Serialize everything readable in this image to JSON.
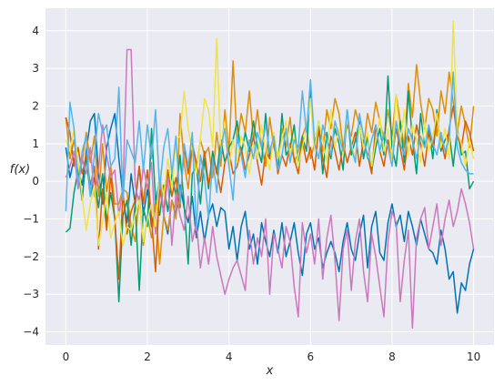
{
  "chart_data": {
    "type": "line",
    "xlabel": "x",
    "ylabel": "f(x)",
    "xlim": [
      -0.5,
      10.5
    ],
    "ylim": [
      -4.35,
      4.6
    ],
    "xticks": [
      0,
      2,
      4,
      6,
      8,
      10
    ],
    "yticks": [
      -4,
      -3,
      -2,
      -1,
      0,
      1,
      2,
      3,
      4
    ],
    "xtick_labels": [
      "0",
      "2",
      "4",
      "6",
      "8",
      "10"
    ],
    "ytick_labels": [
      "−4",
      "−3",
      "−2",
      "−1",
      "0",
      "1",
      "2",
      "3",
      "4"
    ],
    "grid": true,
    "legend": "none",
    "plot_background": "#EAEAF2",
    "grid_color": "#FFFFFF",
    "x_start": 0,
    "x_step": 0.1,
    "series": [
      {
        "color": "#0173B2",
        "values": [
          0.9,
          0.1,
          0.6,
          0.3,
          -0.1,
          0.8,
          1.6,
          1.8,
          0.2,
          -0.6,
          0.9,
          1.4,
          1.8,
          0.6,
          -0.4,
          -1.1,
          0.2,
          -0.6,
          0.4,
          -0.9,
          -0.2,
          -1.2,
          -0.6,
          0.1,
          -0.9,
          -1.4,
          -0.5,
          -0.9,
          -0.1,
          -0.7,
          -1.1,
          -0.4,
          -1.5,
          -0.8,
          -1.6,
          -0.9,
          -0.6,
          -1.2,
          -0.7,
          -0.8,
          -1.8,
          -1.2,
          -2.1,
          -1.2,
          -0.8,
          -1.8,
          -1.4,
          -2.2,
          -1.1,
          -1.6,
          -2.0,
          -1.3,
          -1.9,
          -1.1,
          -2.0,
          -1.6,
          -1.1,
          -1.9,
          -2.5,
          -1.4,
          -1.1,
          -1.8,
          -1.5,
          -2.3,
          -1.9,
          -1.6,
          -1.9,
          -2.4,
          -1.6,
          -1.1,
          -1.8,
          -2.1,
          -1.4,
          -0.9,
          -2.3,
          -1.2,
          -0.8,
          -1.9,
          -2.1,
          -1.1,
          -0.6,
          -1.2,
          -0.9,
          -1.6,
          -0.8,
          -1.2,
          -1.7,
          -1.0,
          -1.4,
          -1.8,
          -1.9,
          -2.2,
          -1.3,
          -1.8,
          -2.6,
          -2.4,
          -3.5,
          -2.7,
          -2.9,
          -2.2,
          -1.8
        ]
      },
      {
        "color": "#DE8F05",
        "values": [
          1.7,
          0.6,
          1.1,
          0.2,
          0.5,
          1.3,
          0.5,
          1.2,
          -0.4,
          1.0,
          -0.3,
          0.4,
          -0.6,
          -0.6,
          -0.2,
          -0.3,
          -1.2,
          -1.6,
          -0.4,
          -1.7,
          -0.9,
          -1.5,
          -0.6,
          -2.2,
          -0.9,
          -1.3,
          -0.5,
          -1.0,
          1.8,
          0.5,
          -0.2,
          0.9,
          0.3,
          1.1,
          0.7,
          0.9,
          0.1,
          1.3,
          0.4,
          1.9,
          0.8,
          3.2,
          1.0,
          1.8,
          1.3,
          2.4,
          1.1,
          1.9,
          0.9,
          0.4,
          1.7,
          0.9,
          0.6,
          1.4,
          0.9,
          1.7,
          0.5,
          0.8,
          1.2,
          1.5,
          0.6,
          1.0,
          1.4,
          0.8,
          1.9,
          1.4,
          2.2,
          1.8,
          0.9,
          1.5,
          1.2,
          1.9,
          1.5,
          0.9,
          1.8,
          1.3,
          2.1,
          1.6,
          1.1,
          1.9,
          1.2,
          2.3,
          1.6,
          0.9,
          2.6,
          1.7,
          3.1,
          2.1,
          1.4,
          2.2,
          1.9,
          1.2,
          2.4,
          1.8,
          2.9,
          2.1,
          1.3,
          2.0,
          1.5,
          0.9,
          2.0
        ]
      },
      {
        "color": "#029E73",
        "values": [
          -1.35,
          -1.25,
          -0.3,
          0.3,
          -0.5,
          0.7,
          -0.4,
          0.1,
          -0.7,
          0.2,
          -1.1,
          -0.3,
          -1.0,
          -3.2,
          -0.9,
          -0.5,
          -1.7,
          -0.6,
          -2.9,
          -0.7,
          -1.2,
          1.4,
          -0.5,
          -0.9,
          -0.1,
          -0.8,
          0.2,
          -0.4,
          0.7,
          -0.6,
          -2.2,
          0.2,
          0.4,
          -0.6,
          0.6,
          -0.2,
          0.8,
          0.2,
          1.1,
          0.5,
          0.9,
          1.1,
          1.6,
          0.7,
          1.3,
          0.8,
          1.6,
          0.9,
          0.5,
          1.8,
          0.6,
          1.2,
          0.3,
          1.8,
          0.7,
          0.9,
          1.5,
          0.4,
          1.2,
          0.8,
          2.5,
          0.9,
          1.6,
          0.2,
          1.3,
          0.6,
          1.4,
          1.0,
          0.3,
          1.9,
          0.7,
          1.1,
          1.6,
          0.6,
          1.2,
          0.3,
          0.9,
          1.4,
          0.7,
          2.8,
          0.9,
          0.4,
          1.6,
          0.5,
          2.4,
          1.1,
          0.2,
          1.8,
          0.9,
          1.4,
          0.6,
          1.9,
          0.8,
          1.1,
          1.3,
          0.4,
          1.4,
          0.7,
          0.8,
          -0.2,
          0.0
        ]
      },
      {
        "color": "#D55E00",
        "values": [
          1.7,
          1.3,
          0.4,
          0.9,
          0.2,
          0.7,
          -0.1,
          0.4,
          -1.8,
          -0.2,
          -1.3,
          0.2,
          -1.0,
          -2.6,
          -0.3,
          -1.4,
          -0.8,
          -0.5,
          0.4,
          -0.6,
          0.3,
          -1.0,
          -2.4,
          -0.2,
          -0.8,
          0.3,
          -0.4,
          0.1,
          -0.7,
          0.9,
          0.2,
          1.0,
          0.5,
          0.0,
          0.8,
          -0.1,
          0.6,
          0.3,
          -0.3,
          0.5,
          0.8,
          0.2,
          0.4,
          0.9,
          0.3,
          0.7,
          1.2,
          0.5,
          -0.1,
          0.8,
          0.6,
          1.1,
          0.2,
          0.7,
          0.4,
          1.0,
          0.6,
          0.2,
          1.1,
          0.5,
          0.9,
          0.3,
          1.4,
          0.6,
          0.1,
          1.2,
          0.8,
          0.3,
          1.0,
          0.5,
          0.9,
          1.3,
          0.4,
          1.1,
          0.7,
          0.2,
          1.5,
          0.8,
          0.4,
          1.1,
          0.6,
          1.4,
          0.9,
          0.3,
          1.2,
          0.7,
          1.5,
          1.0,
          0.4,
          1.3,
          0.9,
          1.6,
          1.1,
          0.6,
          1.4,
          2.0,
          1.2,
          0.9,
          1.6,
          1.3,
          0.8
        ]
      },
      {
        "color": "#CC78BC",
        "values": [
          0.1,
          0.4,
          0.8,
          -0.2,
          0.6,
          0.2,
          0.9,
          -0.4,
          0.3,
          1.5,
          0.7,
          0.1,
          0.3,
          -0.9,
          -0.2,
          3.5,
          3.5,
          -0.1,
          -0.6,
          0.4,
          -0.2,
          0.5,
          -1.4,
          0.2,
          -0.9,
          0.1,
          -1.7,
          -0.3,
          -0.9,
          -1.3,
          -0.4,
          -1.6,
          -1.1,
          -2.3,
          -1.5,
          -2.2,
          -1.2,
          -2.0,
          -2.5,
          -3.0,
          -2.6,
          -2.3,
          -2.1,
          -2.5,
          -2.9,
          -1.3,
          -2.2,
          -1.5,
          -2.0,
          -1.0,
          -3.0,
          -1.4,
          -1.8,
          -2.3,
          -1.2,
          -1.6,
          -2.8,
          -3.6,
          -1.1,
          -1.9,
          -1.4,
          -2.2,
          -1.0,
          -2.6,
          -1.5,
          -0.9,
          -2.1,
          -3.7,
          -1.8,
          -1.3,
          -2.9,
          -1.6,
          -1.0,
          -2.4,
          -3.2,
          -1.4,
          -2.0,
          -2.8,
          -3.6,
          -1.6,
          -0.8,
          -1.1,
          -3.2,
          -2.1,
          -1.3,
          -3.9,
          -1.5,
          -1.0,
          -0.7,
          -1.8,
          -1.2,
          -0.6,
          -1.7,
          -1.0,
          -0.5,
          -1.2,
          -0.8,
          -0.2,
          -0.6,
          -1.1,
          -1.8
        ]
      },
      {
        "color": "#F0E442",
        "values": [
          1.1,
          0.8,
          1.4,
          0.5,
          -0.4,
          -1.3,
          -0.6,
          -0.1,
          -1.7,
          -1.1,
          -0.3,
          -1.5,
          -1.1,
          -0.8,
          -1.7,
          -1.2,
          -1.3,
          -0.9,
          -0.5,
          -1.6,
          -1.0,
          -0.6,
          -1.2,
          0.3,
          -0.4,
          0.6,
          -0.2,
          1.1,
          1.2,
          2.4,
          1.4,
          0.8,
          0.2,
          1.1,
          2.2,
          1.9,
          0.9,
          3.8,
          0.8,
          1.6,
          0.4,
          1.1,
          0.5,
          1.2,
          0.9,
          0.2,
          1.0,
          0.6,
          1.5,
          0.8,
          0.3,
          1.3,
          0.6,
          1.1,
          1.6,
          0.7,
          1.2,
          0.4,
          0.9,
          1.4,
          2.2,
          0.8,
          1.6,
          1.1,
          0.5,
          1.9,
          0.9,
          1.4,
          0.7,
          1.8,
          1.0,
          0.6,
          1.5,
          0.9,
          1.3,
          0.4,
          1.1,
          1.7,
          0.8,
          1.4,
          0.6,
          2.3,
          1.0,
          1.9,
          0.7,
          1.5,
          1.1,
          0.5,
          1.6,
          0.8,
          1.2,
          1.8,
          0.9,
          1.4,
          0.6,
          4.25,
          1.3,
          1.0,
          0.4,
          1.1,
          0.6
        ]
      },
      {
        "color": "#56B4E9",
        "values": [
          -0.8,
          2.1,
          1.4,
          -0.1,
          0.8,
          1.2,
          -0.4,
          0.7,
          1.8,
          1.3,
          1.5,
          0.4,
          0.6,
          2.5,
          -0.5,
          1.1,
          0.8,
          0.5,
          1.6,
          0.3,
          1.5,
          0.6,
          1.9,
          -0.2,
          0.9,
          1.4,
          0.2,
          1.2,
          -0.6,
          1.0,
          0.4,
          1.3,
          -1.3,
          0.7,
          0.1,
          -1.0,
          0.6,
          -0.3,
          0.9,
          1.4,
          0.4,
          -0.5,
          1.2,
          0.7,
          0.1,
          1.1,
          0.6,
          1.3,
          0.9,
          1.5,
          0.8,
          1.2,
          0.3,
          0.7,
          1.4,
          0.5,
          1.1,
          0.9,
          2.4,
          1.3,
          2.7,
          1.0,
          0.6,
          1.5,
          1.1,
          0.7,
          1.6,
          1.2,
          0.8,
          1.9,
          0.9,
          0.5,
          1.8,
          1.2,
          0.6,
          1.1,
          1.5,
          0.8,
          1.3,
          0.9,
          0.4,
          1.6,
          1.0,
          0.7,
          1.4,
          1.1,
          0.6,
          1.2,
          0.9,
          1.5,
          1.0,
          0.7,
          1.3,
          0.8,
          1.1,
          2.9,
          0.9,
          0.5,
          0.3,
          0.2,
          0.2
        ]
      }
    ]
  }
}
